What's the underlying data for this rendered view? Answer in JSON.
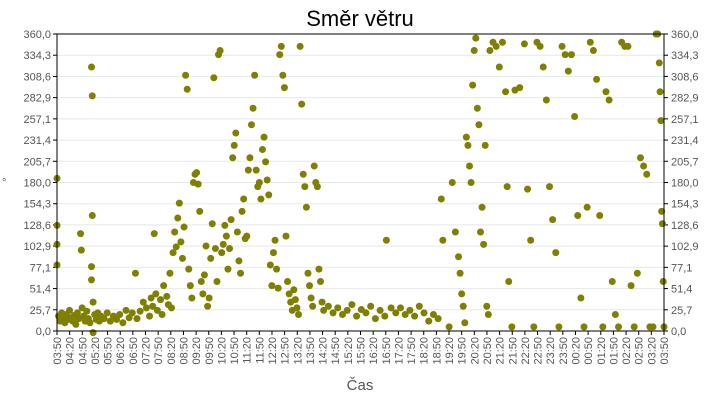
{
  "chart_data": {
    "type": "scatter",
    "title": "Směr větru",
    "xlabel": "Čas",
    "ylabel": "°",
    "y_unit_right": "°",
    "ylim": [
      0,
      360
    ],
    "grid": true,
    "legend": "none",
    "marker_color": "#808000",
    "y_ticks": [
      "0,0",
      "25,7",
      "51,4",
      "77,1",
      "102,9",
      "128,6",
      "154,3",
      "180,0",
      "205,7",
      "231,4",
      "257,1",
      "282,9",
      "308,6",
      "334,3",
      "360,0"
    ],
    "x_ticks": [
      "03:50",
      "04:20",
      "04:50",
      "05:20",
      "05:50",
      "06:20",
      "06:50",
      "07:20",
      "07:50",
      "08:20",
      "08:50",
      "09:20",
      "09:50",
      "10:20",
      "10:50",
      "11:20",
      "11:50",
      "12:20",
      "12:50",
      "13:20",
      "13:50",
      "14:20",
      "14:50",
      "15:20",
      "15:50",
      "16:20",
      "16:50",
      "17:20",
      "17:50",
      "18:20",
      "18:50",
      "19:20",
      "19:50",
      "20:20",
      "20:50",
      "21:20",
      "21:50",
      "22:20",
      "22:50",
      "23:20",
      "23:50",
      "00:20",
      "00:50",
      "01:20",
      "01:50",
      "02:20",
      "02:50",
      "03:20",
      "03:50"
    ],
    "series": [
      {
        "name": "Směr větru",
        "points": [
          [
            0.0,
            185
          ],
          [
            0.0,
            128
          ],
          [
            0.0,
            105
          ],
          [
            0.0,
            80
          ],
          [
            0.1,
            18
          ],
          [
            0.2,
            12
          ],
          [
            0.3,
            22
          ],
          [
            0.4,
            15
          ],
          [
            0.5,
            10
          ],
          [
            0.6,
            20
          ],
          [
            0.7,
            14
          ],
          [
            0.8,
            25
          ],
          [
            0.9,
            16
          ],
          [
            1.0,
            12
          ],
          [
            1.1,
            19
          ],
          [
            1.2,
            8
          ],
          [
            1.3,
            22
          ],
          [
            1.4,
            15
          ],
          [
            1.5,
            118
          ],
          [
            1.55,
            98
          ],
          [
            1.6,
            28
          ],
          [
            1.7,
            18
          ],
          [
            1.8,
            12
          ],
          [
            1.9,
            24
          ],
          [
            2.0,
            15
          ],
          [
            2.1,
            10
          ],
          [
            2.2,
            320
          ],
          [
            2.25,
            285
          ],
          [
            2.25,
            140
          ],
          [
            2.2,
            78
          ],
          [
            2.2,
            62
          ],
          [
            2.3,
            35
          ],
          [
            2.3,
            -3
          ],
          [
            2.4,
            20
          ],
          [
            2.5,
            14
          ],
          [
            2.6,
            22
          ],
          [
            2.7,
            12
          ],
          [
            2.8,
            18
          ],
          [
            3.0,
            15
          ],
          [
            3.2,
            22
          ],
          [
            3.4,
            12
          ],
          [
            3.6,
            18
          ],
          [
            3.8,
            14
          ],
          [
            4.0,
            20
          ],
          [
            4.2,
            10
          ],
          [
            4.4,
            25
          ],
          [
            4.6,
            16
          ],
          [
            4.8,
            22
          ],
          [
            5.0,
            70
          ],
          [
            5.1,
            15
          ],
          [
            5.3,
            24
          ],
          [
            5.5,
            35
          ],
          [
            5.7,
            28
          ],
          [
            5.9,
            18
          ],
          [
            6.0,
            40
          ],
          [
            6.1,
            30
          ],
          [
            6.2,
            118
          ],
          [
            6.3,
            45
          ],
          [
            6.4,
            25
          ],
          [
            6.6,
            38
          ],
          [
            6.7,
            20
          ],
          [
            6.8,
            55
          ],
          [
            7.0,
            42
          ],
          [
            7.1,
            32
          ],
          [
            7.2,
            70
          ],
          [
            7.3,
            28
          ],
          [
            7.4,
            95
          ],
          [
            7.5,
            120
          ],
          [
            7.6,
            102
          ],
          [
            7.7,
            137
          ],
          [
            7.8,
            155
          ],
          [
            7.9,
            108
          ],
          [
            8.0,
            88
          ],
          [
            8.1,
            126
          ],
          [
            8.2,
            310
          ],
          [
            8.3,
            293
          ],
          [
            8.4,
            75
          ],
          [
            8.5,
            55
          ],
          [
            8.6,
            40
          ],
          [
            8.7,
            180
          ],
          [
            8.8,
            190
          ],
          [
            8.9,
            192
          ],
          [
            9.0,
            178
          ],
          [
            9.1,
            145
          ],
          [
            9.2,
            60
          ],
          [
            9.3,
            45
          ],
          [
            9.4,
            68
          ],
          [
            9.5,
            103
          ],
          [
            9.6,
            30
          ],
          [
            9.7,
            40
          ],
          [
            9.8,
            88
          ],
          [
            9.9,
            130
          ],
          [
            10.0,
            307
          ],
          [
            10.1,
            100
          ],
          [
            10.2,
            60
          ],
          [
            10.3,
            335
          ],
          [
            10.4,
            340
          ],
          [
            10.5,
            95
          ],
          [
            10.6,
            105
          ],
          [
            10.7,
            128
          ],
          [
            10.8,
            115
          ],
          [
            10.9,
            75
          ],
          [
            11.0,
            100
          ],
          [
            11.1,
            135
          ],
          [
            11.2,
            210
          ],
          [
            11.3,
            225
          ],
          [
            11.4,
            240
          ],
          [
            11.5,
            120
          ],
          [
            11.6,
            85
          ],
          [
            11.7,
            70
          ],
          [
            11.8,
            145
          ],
          [
            11.9,
            160
          ],
          [
            12.0,
            112
          ],
          [
            12.1,
            115
          ],
          [
            12.2,
            195
          ],
          [
            12.3,
            210
          ],
          [
            12.4,
            250
          ],
          [
            12.5,
            270
          ],
          [
            12.6,
            310
          ],
          [
            12.7,
            195
          ],
          [
            12.8,
            175
          ],
          [
            12.9,
            180
          ],
          [
            13.0,
            160
          ],
          [
            13.1,
            220
          ],
          [
            13.2,
            235
          ],
          [
            13.3,
            205
          ],
          [
            13.4,
            183
          ],
          [
            13.5,
            165
          ],
          [
            13.6,
            80
          ],
          [
            13.7,
            55
          ],
          [
            13.8,
            95
          ],
          [
            13.9,
            110
          ],
          [
            14.0,
            75
          ],
          [
            14.1,
            52
          ],
          [
            14.2,
            335
          ],
          [
            14.3,
            345
          ],
          [
            14.4,
            310
          ],
          [
            14.5,
            295
          ],
          [
            14.6,
            115
          ],
          [
            14.7,
            60
          ],
          [
            14.8,
            45
          ],
          [
            14.9,
            35
          ],
          [
            15.0,
            25
          ],
          [
            15.1,
            50
          ],
          [
            15.2,
            38
          ],
          [
            15.3,
            28
          ],
          [
            15.4,
            20
          ],
          [
            15.5,
            345
          ],
          [
            15.6,
            275
          ],
          [
            15.7,
            190
          ],
          [
            15.8,
            175
          ],
          [
            15.9,
            150
          ],
          [
            16.0,
            70
          ],
          [
            16.1,
            55
          ],
          [
            16.2,
            40
          ],
          [
            16.3,
            30
          ],
          [
            16.4,
            200
          ],
          [
            16.5,
            180
          ],
          [
            16.6,
            175
          ],
          [
            16.7,
            75
          ],
          [
            16.8,
            60
          ],
          [
            16.9,
            35
          ],
          [
            17.0,
            25
          ],
          [
            17.3,
            30
          ],
          [
            17.6,
            22
          ],
          [
            17.9,
            28
          ],
          [
            18.2,
            20
          ],
          [
            18.5,
            25
          ],
          [
            18.8,
            32
          ],
          [
            19.1,
            18
          ],
          [
            19.4,
            26
          ],
          [
            19.7,
            22
          ],
          [
            20.0,
            30
          ],
          [
            20.3,
            15
          ],
          [
            20.6,
            25
          ],
          [
            20.9,
            18
          ],
          [
            21.0,
            110
          ],
          [
            21.3,
            28
          ],
          [
            21.6,
            22
          ],
          [
            21.9,
            28
          ],
          [
            22.2,
            20
          ],
          [
            22.5,
            25
          ],
          [
            22.8,
            18
          ],
          [
            23.1,
            30
          ],
          [
            23.4,
            22
          ],
          [
            23.7,
            12
          ],
          [
            24.0,
            20
          ],
          [
            24.3,
            15
          ],
          [
            24.5,
            160
          ],
          [
            24.6,
            110
          ],
          [
            25.0,
            5
          ],
          [
            25.2,
            180
          ],
          [
            25.4,
            120
          ],
          [
            25.6,
            90
          ],
          [
            25.7,
            70
          ],
          [
            25.8,
            45
          ],
          [
            25.9,
            30
          ],
          [
            26.0,
            10
          ],
          [
            26.1,
            235
          ],
          [
            26.2,
            225
          ],
          [
            26.3,
            200
          ],
          [
            26.4,
            180
          ],
          [
            26.5,
            298
          ],
          [
            26.6,
            340
          ],
          [
            26.7,
            355
          ],
          [
            26.8,
            270
          ],
          [
            26.9,
            250
          ],
          [
            27.0,
            120
          ],
          [
            27.1,
            150
          ],
          [
            27.2,
            105
          ],
          [
            27.3,
            225
          ],
          [
            27.4,
            30
          ],
          [
            27.5,
            20
          ],
          [
            27.6,
            340
          ],
          [
            27.8,
            350
          ],
          [
            28.0,
            345
          ],
          [
            28.2,
            320
          ],
          [
            28.4,
            350
          ],
          [
            28.6,
            290
          ],
          [
            28.7,
            175
          ],
          [
            28.8,
            60
          ],
          [
            29.0,
            5
          ],
          [
            29.2,
            292
          ],
          [
            29.5,
            295
          ],
          [
            29.8,
            348
          ],
          [
            30.0,
            172
          ],
          [
            30.2,
            110
          ],
          [
            30.4,
            5
          ],
          [
            30.6,
            350
          ],
          [
            30.8,
            345
          ],
          [
            31.0,
            320
          ],
          [
            31.2,
            280
          ],
          [
            31.4,
            175
          ],
          [
            31.6,
            135
          ],
          [
            31.8,
            95
          ],
          [
            32.0,
            5
          ],
          [
            32.2,
            345
          ],
          [
            32.4,
            335
          ],
          [
            32.6,
            315
          ],
          [
            32.8,
            335
          ],
          [
            33.0,
            260
          ],
          [
            33.2,
            140
          ],
          [
            33.4,
            40
          ],
          [
            33.6,
            5
          ],
          [
            33.8,
            150
          ],
          [
            34.0,
            350
          ],
          [
            34.2,
            340
          ],
          [
            34.4,
            305
          ],
          [
            34.6,
            140
          ],
          [
            34.8,
            5
          ],
          [
            35.0,
            290
          ],
          [
            35.2,
            280
          ],
          [
            35.4,
            60
          ],
          [
            35.6,
            20
          ],
          [
            35.8,
            5
          ],
          [
            36.0,
            350
          ],
          [
            36.2,
            345
          ],
          [
            36.4,
            345
          ],
          [
            36.6,
            55
          ],
          [
            36.8,
            5
          ],
          [
            37.0,
            70
          ],
          [
            37.2,
            210
          ],
          [
            37.4,
            200
          ],
          [
            37.6,
            190
          ],
          [
            37.8,
            5
          ],
          [
            38.0,
            5
          ],
          [
            38.2,
            360
          ],
          [
            38.3,
            360
          ],
          [
            38.4,
            325
          ],
          [
            38.45,
            290
          ],
          [
            38.5,
            255
          ],
          [
            38.55,
            145
          ],
          [
            38.6,
            130
          ],
          [
            38.65,
            60
          ],
          [
            38.7,
            5
          ]
        ]
      }
    ]
  }
}
